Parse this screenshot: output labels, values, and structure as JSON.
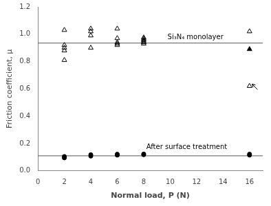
{
  "chart_data": {
    "type": "scatter",
    "xlabel": "Normal load, P (N)",
    "ylabel": "Friction coefficient, μ",
    "xlim": [
      0,
      17
    ],
    "ylim": [
      0.0,
      1.2
    ],
    "xticks": [
      0,
      2,
      4,
      6,
      8,
      10,
      12,
      14,
      16
    ],
    "yticks": [
      {
        "value": 0.0,
        "label": "0.0"
      },
      0.2,
      0.4,
      0.6,
      0.8,
      {
        "value": 1.0,
        "label": "1.0"
      },
      1.2
    ],
    "grid": false,
    "series": [
      {
        "type": "hline",
        "values": [
          0.935
        ],
        "color": "#555555"
      },
      {
        "type": "hline",
        "values": [
          0.11
        ],
        "color": "#555555"
      },
      {
        "marker": "triangle-open",
        "color": "#000000",
        "x": [
          2,
          2,
          2,
          2,
          2,
          4,
          4,
          4,
          4,
          6,
          6,
          6,
          6,
          6,
          8,
          8,
          8,
          8,
          8,
          8,
          16,
          16
        ],
        "values": [
          1.03,
          0.92,
          0.9,
          0.88,
          0.81,
          1.04,
          1.02,
          0.99,
          0.9,
          1.04,
          0.97,
          0.94,
          0.93,
          0.92,
          0.975,
          0.965,
          0.955,
          0.945,
          0.94,
          0.93,
          1.02,
          0.62
        ]
      },
      {
        "marker": "triangle",
        "color": "#000000",
        "x": [
          16
        ],
        "values": [
          0.89
        ]
      },
      {
        "marker": "circle",
        "color": "#000000",
        "x": [
          2,
          2,
          4,
          4,
          6,
          6,
          8,
          8,
          16,
          16
        ],
        "values": [
          0.095,
          0.105,
          0.108,
          0.118,
          0.115,
          0.122,
          0.118,
          0.123,
          0.115,
          0.122
        ]
      }
    ],
    "annotations": [
      {
        "text": "Si₃N₄ monolayer",
        "x": 9.8,
        "y": 0.975
      },
      {
        "text": "After surface treatment",
        "x": 8.2,
        "y": 0.175
      }
    ],
    "arrows": [
      {
        "from": [
          16.6,
          0.595
        ],
        "to": [
          16.2,
          0.635
        ]
      }
    ]
  }
}
